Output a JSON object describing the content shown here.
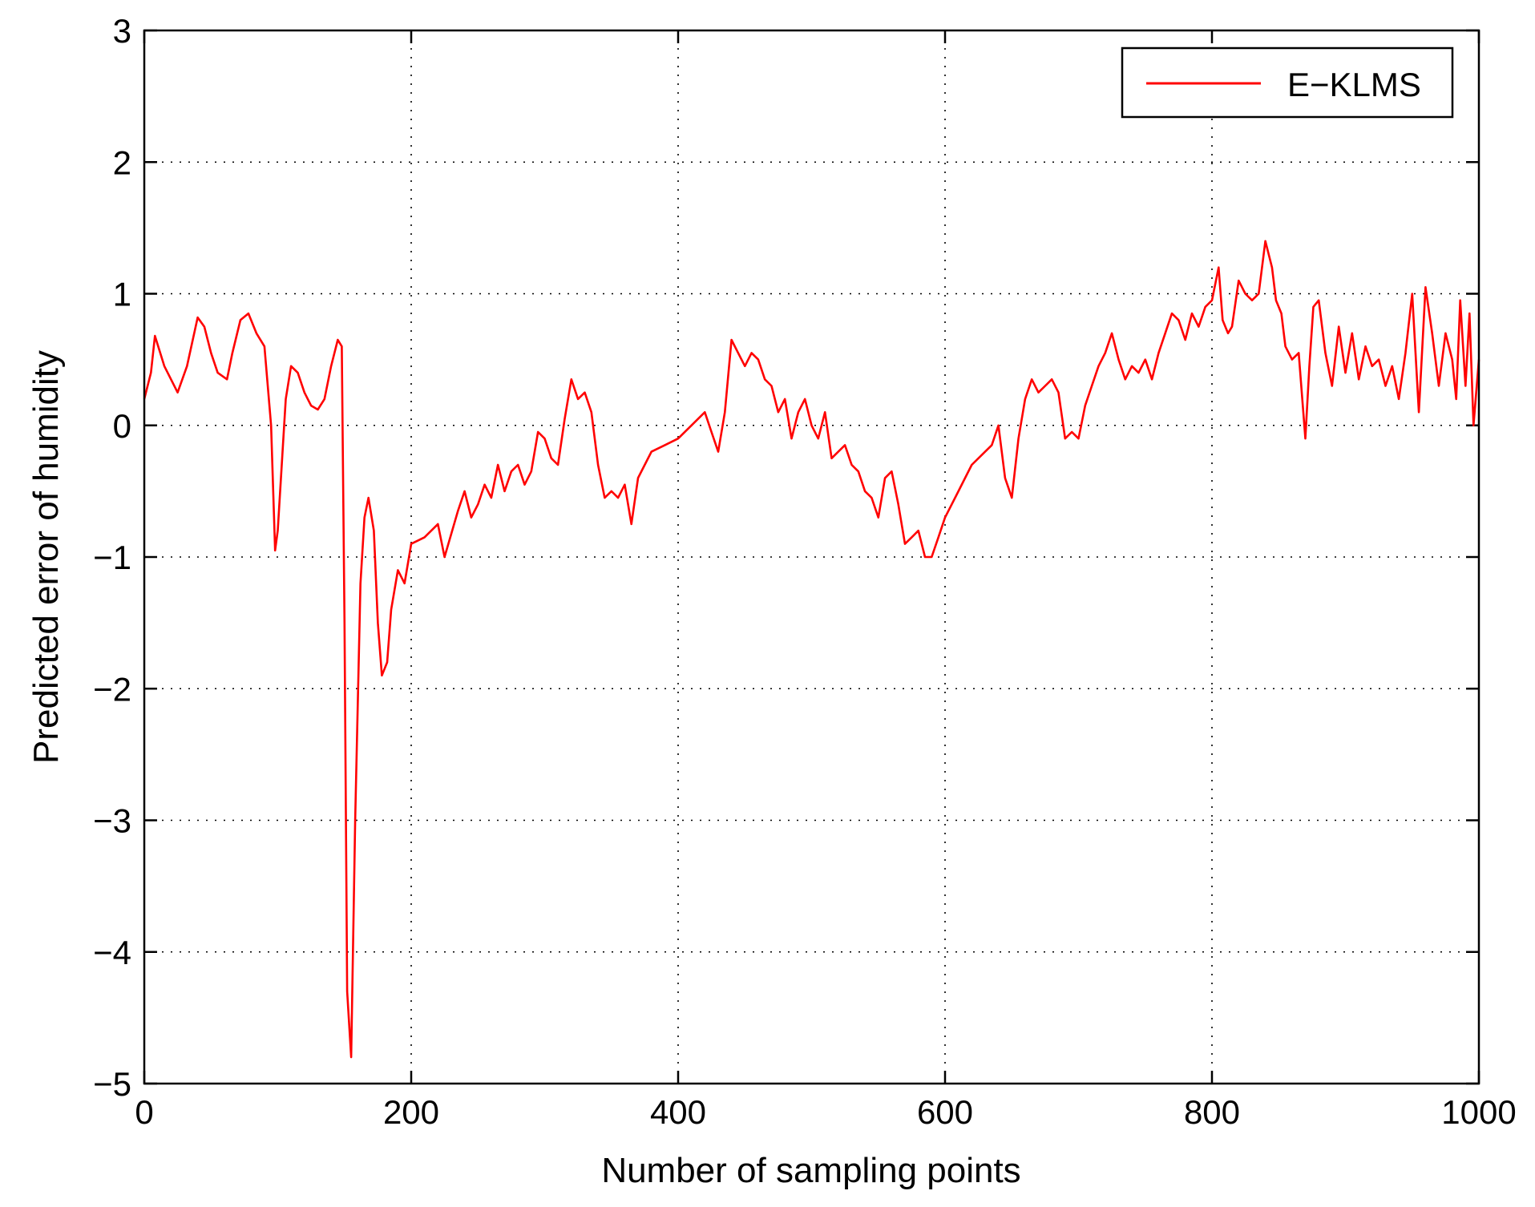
{
  "chart_data": {
    "type": "line",
    "xlabel": "Number of sampling points",
    "ylabel": "Predicted error of humidity",
    "xlim": [
      0,
      1000
    ],
    "ylim": [
      -5,
      3
    ],
    "xticks": [
      0,
      200,
      400,
      600,
      800,
      1000
    ],
    "yticks": [
      3,
      2,
      1,
      0,
      -1,
      -2,
      -3,
      -4,
      -5
    ],
    "xtick_labels": [
      "0",
      "200",
      "400",
      "600",
      "800",
      "1000"
    ],
    "ytick_labels": [
      "3",
      "2",
      "1",
      "0",
      "−1",
      "−2",
      "−3",
      "−4",
      "−5"
    ],
    "grid": true,
    "legend_position": "top-right",
    "series": [
      {
        "name": "E−KLMS",
        "color": "#ff0000",
        "x": [
          0,
          5,
          8,
          15,
          25,
          32,
          40,
          45,
          50,
          55,
          62,
          66,
          72,
          78,
          84,
          90,
          95,
          98,
          100,
          103,
          106,
          110,
          115,
          120,
          125,
          130,
          135,
          140,
          145,
          148,
          150,
          152,
          155,
          158,
          162,
          165,
          168,
          172,
          175,
          178,
          182,
          185,
          190,
          195,
          200,
          210,
          220,
          225,
          235,
          240,
          245,
          250,
          255,
          260,
          265,
          270,
          275,
          280,
          285,
          290,
          295,
          300,
          305,
          310,
          315,
          320,
          325,
          330,
          335,
          340,
          345,
          350,
          355,
          360,
          365,
          370,
          380,
          390,
          400,
          410,
          420,
          425,
          430,
          435,
          440,
          445,
          450,
          455,
          460,
          465,
          470,
          475,
          480,
          485,
          490,
          495,
          500,
          505,
          510,
          515,
          520,
          525,
          530,
          535,
          540,
          545,
          550,
          555,
          560,
          565,
          570,
          575,
          580,
          585,
          590,
          595,
          600,
          610,
          620,
          630,
          635,
          640,
          645,
          650,
          655,
          660,
          665,
          670,
          675,
          680,
          685,
          690,
          695,
          700,
          705,
          710,
          715,
          720,
          725,
          730,
          735,
          740,
          745,
          750,
          755,
          760,
          765,
          770,
          775,
          780,
          785,
          790,
          795,
          800,
          805,
          808,
          812,
          815,
          820,
          825,
          830,
          835,
          840,
          845,
          848,
          852,
          855,
          860,
          865,
          870,
          873,
          876,
          880,
          885,
          890,
          895,
          900,
          905,
          910,
          915,
          920,
          925,
          930,
          935,
          940,
          945,
          950,
          955,
          960,
          965,
          970,
          975,
          980,
          983,
          986,
          990,
          993,
          996,
          1000
        ],
        "y": [
          0.2,
          0.4,
          0.68,
          0.45,
          0.25,
          0.45,
          0.82,
          0.75,
          0.55,
          0.4,
          0.35,
          0.55,
          0.8,
          0.85,
          0.7,
          0.6,
          0.0,
          -0.95,
          -0.8,
          -0.3,
          0.2,
          0.45,
          0.4,
          0.25,
          0.15,
          0.12,
          0.2,
          0.45,
          0.65,
          0.6,
          -1.5,
          -4.3,
          -4.8,
          -3.0,
          -1.2,
          -0.7,
          -0.55,
          -0.8,
          -1.5,
          -1.9,
          -1.8,
          -1.4,
          -1.1,
          -1.2,
          -0.9,
          -0.85,
          -0.75,
          -1.0,
          -0.65,
          -0.5,
          -0.7,
          -0.6,
          -0.45,
          -0.55,
          -0.3,
          -0.5,
          -0.35,
          -0.3,
          -0.45,
          -0.35,
          -0.05,
          -0.1,
          -0.25,
          -0.3,
          0.05,
          0.35,
          0.2,
          0.25,
          0.1,
          -0.3,
          -0.55,
          -0.5,
          -0.55,
          -0.45,
          -0.75,
          -0.4,
          -0.2,
          -0.15,
          -0.1,
          0.0,
          0.1,
          -0.05,
          -0.2,
          0.1,
          0.65,
          0.55,
          0.45,
          0.55,
          0.5,
          0.35,
          0.3,
          0.1,
          0.2,
          -0.1,
          0.1,
          0.2,
          0.0,
          -0.1,
          0.1,
          -0.25,
          -0.2,
          -0.15,
          -0.3,
          -0.35,
          -0.5,
          -0.55,
          -0.7,
          -0.4,
          -0.35,
          -0.6,
          -0.9,
          -0.85,
          -0.8,
          -1.0,
          -1.0,
          -0.85,
          -0.7,
          -0.5,
          -0.3,
          -0.2,
          -0.15,
          0.0,
          -0.4,
          -0.55,
          -0.1,
          0.2,
          0.35,
          0.25,
          0.3,
          0.35,
          0.25,
          -0.1,
          -0.05,
          -0.1,
          0.15,
          0.3,
          0.45,
          0.55,
          0.7,
          0.5,
          0.35,
          0.45,
          0.4,
          0.5,
          0.35,
          0.55,
          0.7,
          0.85,
          0.8,
          0.65,
          0.85,
          0.75,
          0.9,
          0.95,
          1.2,
          0.8,
          0.7,
          0.75,
          1.1,
          1.0,
          0.95,
          1.0,
          1.4,
          1.2,
          0.95,
          0.85,
          0.6,
          0.5,
          0.55,
          -0.1,
          0.45,
          0.9,
          0.95,
          0.55,
          0.3,
          0.75,
          0.4,
          0.7,
          0.35,
          0.6,
          0.45,
          0.5,
          0.3,
          0.45,
          0.2,
          0.55,
          1.0,
          0.1,
          1.05,
          0.7,
          0.3,
          0.7,
          0.5,
          0.2,
          0.95,
          0.3,
          0.85,
          0.0,
          0.5
        ]
      }
    ]
  }
}
